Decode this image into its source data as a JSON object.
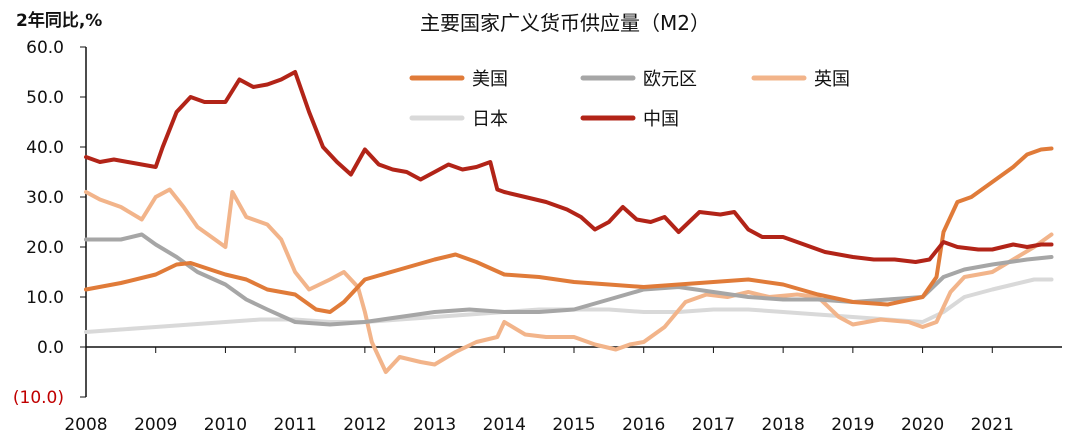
{
  "chart_data": {
    "type": "line",
    "title": "主要国家广义货币供应量（M2）",
    "ylabel": "2年同比,%",
    "xlabel": "",
    "ylim": [
      -10,
      60
    ],
    "yticks": [
      {
        "value": 60,
        "label": "60.0"
      },
      {
        "value": 50,
        "label": "50.0"
      },
      {
        "value": 40,
        "label": "40.0"
      },
      {
        "value": 30,
        "label": "30.0"
      },
      {
        "value": 20,
        "label": "20.0"
      },
      {
        "value": 10,
        "label": "10.0"
      },
      {
        "value": 0,
        "label": "0.0"
      },
      {
        "value": -10,
        "label": "(10.0)"
      }
    ],
    "xlim": [
      2008,
      2022
    ],
    "xticks": [
      "2008",
      "2009",
      "2010",
      "2011",
      "2012",
      "2013",
      "2014",
      "2015",
      "2016",
      "2017",
      "2018",
      "2019",
      "2020",
      "2021"
    ],
    "legend_position": "top-center",
    "series": [
      {
        "name": "美国",
        "color": "#e07b39",
        "x": [
          2008.0,
          2008.5,
          2009.0,
          2009.3,
          2009.5,
          2010.0,
          2010.3,
          2010.6,
          2011.0,
          2011.3,
          2011.5,
          2011.7,
          2012.0,
          2012.5,
          2013.0,
          2013.3,
          2013.6,
          2014.0,
          2014.5,
          2015.0,
          2015.5,
          2016.0,
          2016.5,
          2017.0,
          2017.5,
          2018.0,
          2018.5,
          2019.0,
          2019.5,
          2020.0,
          2020.2,
          2020.3,
          2020.5,
          2020.7,
          2021.0,
          2021.3,
          2021.5,
          2021.7,
          2021.85
        ],
        "y": [
          11.5,
          12.8,
          14.5,
          16.5,
          16.8,
          14.5,
          13.5,
          11.5,
          10.5,
          7.5,
          7.0,
          9.0,
          13.5,
          15.5,
          17.5,
          18.5,
          17.0,
          14.5,
          14.0,
          13.0,
          12.5,
          12.0,
          12.5,
          13.0,
          13.5,
          12.5,
          10.5,
          9.0,
          8.5,
          10.0,
          14.0,
          23.0,
          29.0,
          30.0,
          33.0,
          36.0,
          38.5,
          39.5,
          39.7
        ]
      },
      {
        "name": "欧元区",
        "color": "#a6a6a6",
        "x": [
          2008.0,
          2008.5,
          2008.8,
          2009.0,
          2009.3,
          2009.6,
          2010.0,
          2010.3,
          2010.6,
          2011.0,
          2011.5,
          2012.0,
          2012.5,
          2013.0,
          2013.5,
          2014.0,
          2014.5,
          2015.0,
          2015.5,
          2016.0,
          2016.5,
          2017.0,
          2017.5,
          2018.0,
          2018.5,
          2019.0,
          2019.5,
          2020.0,
          2020.3,
          2020.6,
          2021.0,
          2021.5,
          2021.85
        ],
        "y": [
          21.5,
          21.5,
          22.5,
          20.5,
          18.0,
          15.0,
          12.5,
          9.5,
          7.5,
          5.0,
          4.5,
          5.0,
          6.0,
          7.0,
          7.5,
          7.0,
          7.0,
          7.5,
          9.5,
          11.5,
          12.0,
          11.0,
          10.0,
          9.5,
          9.5,
          9.0,
          9.5,
          10.0,
          14.0,
          15.5,
          16.5,
          17.5,
          18.0
        ]
      },
      {
        "name": "英国",
        "color": "#f2b48a",
        "x": [
          2008.0,
          2008.2,
          2008.5,
          2008.8,
          2009.0,
          2009.2,
          2009.4,
          2009.6,
          2009.8,
          2010.0,
          2010.1,
          2010.3,
          2010.6,
          2010.8,
          2011.0,
          2011.2,
          2011.5,
          2011.7,
          2011.9,
          2012.0,
          2012.1,
          2012.3,
          2012.5,
          2012.8,
          2013.0,
          2013.3,
          2013.6,
          2013.9,
          2014.0,
          2014.3,
          2014.6,
          2015.0,
          2015.3,
          2015.6,
          2015.8,
          2016.0,
          2016.3,
          2016.6,
          2016.9,
          2017.2,
          2017.5,
          2017.8,
          2018.2,
          2018.5,
          2018.8,
          2019.0,
          2019.4,
          2019.8,
          2020.0,
          2020.2,
          2020.4,
          2020.6,
          2021.0,
          2021.3,
          2021.6,
          2021.85
        ],
        "y": [
          31.0,
          29.5,
          28.0,
          25.5,
          30.0,
          31.5,
          28.0,
          24.0,
          22.0,
          20.0,
          31.0,
          26.0,
          24.5,
          21.5,
          15.0,
          11.5,
          13.5,
          15.0,
          12.0,
          7.0,
          1.0,
          -5.0,
          -2.0,
          -3.0,
          -3.5,
          -1.0,
          1.0,
          2.0,
          5.0,
          2.5,
          2.0,
          2.0,
          0.5,
          -0.5,
          0.5,
          1.0,
          4.0,
          9.0,
          10.5,
          10.0,
          11.0,
          10.0,
          10.5,
          10.0,
          6.0,
          4.5,
          5.5,
          5.0,
          4.0,
          5.0,
          11.0,
          14.0,
          15.0,
          17.5,
          20.0,
          22.5
        ]
      },
      {
        "name": "日本",
        "color": "#d9d9d9",
        "x": [
          2008.0,
          2008.5,
          2009.0,
          2009.5,
          2010.0,
          2010.5,
          2011.0,
          2011.5,
          2012.0,
          2012.5,
          2013.0,
          2013.5,
          2014.0,
          2014.5,
          2015.0,
          2015.5,
          2016.0,
          2016.5,
          2017.0,
          2017.5,
          2018.0,
          2018.5,
          2019.0,
          2019.5,
          2020.0,
          2020.3,
          2020.6,
          2021.0,
          2021.3,
          2021.6,
          2021.85
        ],
        "y": [
          3.0,
          3.5,
          4.0,
          4.5,
          5.0,
          5.5,
          5.5,
          5.0,
          5.0,
          5.5,
          6.0,
          6.5,
          7.0,
          7.5,
          7.5,
          7.5,
          7.0,
          7.0,
          7.5,
          7.5,
          7.0,
          6.5,
          6.0,
          5.5,
          5.0,
          7.0,
          10.0,
          11.5,
          12.5,
          13.5,
          13.5
        ]
      },
      {
        "name": "中国",
        "color": "#b22418",
        "x": [
          2008.0,
          2008.2,
          2008.4,
          2008.6,
          2008.8,
          2009.0,
          2009.1,
          2009.3,
          2009.5,
          2009.7,
          2010.0,
          2010.2,
          2010.4,
          2010.6,
          2010.8,
          2011.0,
          2011.2,
          2011.4,
          2011.6,
          2011.8,
          2012.0,
          2012.2,
          2012.4,
          2012.6,
          2012.8,
          2013.0,
          2013.2,
          2013.4,
          2013.6,
          2013.8,
          2013.9,
          2014.0,
          2014.3,
          2014.6,
          2014.9,
          2015.1,
          2015.3,
          2015.5,
          2015.7,
          2015.9,
          2016.1,
          2016.3,
          2016.5,
          2016.8,
          2017.1,
          2017.3,
          2017.5,
          2017.7,
          2018.0,
          2018.3,
          2018.6,
          2019.0,
          2019.3,
          2019.6,
          2019.9,
          2020.1,
          2020.3,
          2020.5,
          2020.8,
          2021.0,
          2021.3,
          2021.5,
          2021.7,
          2021.85
        ],
        "y": [
          38.0,
          37.0,
          37.5,
          37.0,
          36.5,
          36.0,
          40.0,
          47.0,
          50.0,
          49.0,
          49.0,
          53.5,
          52.0,
          52.5,
          53.5,
          55.0,
          47.0,
          40.0,
          37.0,
          34.5,
          39.5,
          36.5,
          35.5,
          35.0,
          33.5,
          35.0,
          36.5,
          35.5,
          36.0,
          37.0,
          31.5,
          31.0,
          30.0,
          29.0,
          27.5,
          26.0,
          23.5,
          25.0,
          28.0,
          25.5,
          25.0,
          26.0,
          23.0,
          27.0,
          26.5,
          27.0,
          23.5,
          22.0,
          22.0,
          20.5,
          19.0,
          18.0,
          17.5,
          17.5,
          17.0,
          17.5,
          21.0,
          20.0,
          19.5,
          19.5,
          20.5,
          20.0,
          20.5,
          20.5
        ]
      }
    ]
  }
}
